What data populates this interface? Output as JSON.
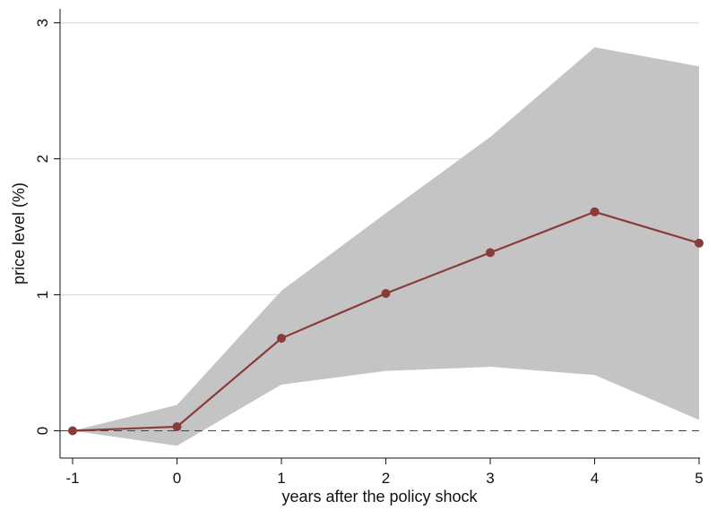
{
  "chart_data": {
    "type": "line",
    "xlabel": "years after the policy shock",
    "ylabel": "price level (%)",
    "x": [
      -1,
      0,
      1,
      2,
      3,
      4,
      5
    ],
    "xticks": [
      "-1",
      "0",
      "1",
      "2",
      "3",
      "4",
      "5"
    ],
    "yticks": [
      "0",
      "1",
      "2",
      "3"
    ],
    "xlim": [
      -1,
      5
    ],
    "ylim": [
      -0.2,
      3.0
    ],
    "grid": "horizontal",
    "reference_line": 0,
    "series": [
      {
        "values": [
          0.0,
          0.03,
          0.68,
          1.01,
          1.31,
          1.61,
          1.38
        ],
        "color": "#8B3A3A"
      }
    ],
    "band": {
      "lower": [
        0.0,
        -0.11,
        0.34,
        0.44,
        0.47,
        0.41,
        0.08
      ],
      "upper": [
        0.0,
        0.19,
        1.03,
        1.6,
        2.16,
        2.82,
        2.68
      ],
      "color": "#c4c4c4"
    }
  }
}
